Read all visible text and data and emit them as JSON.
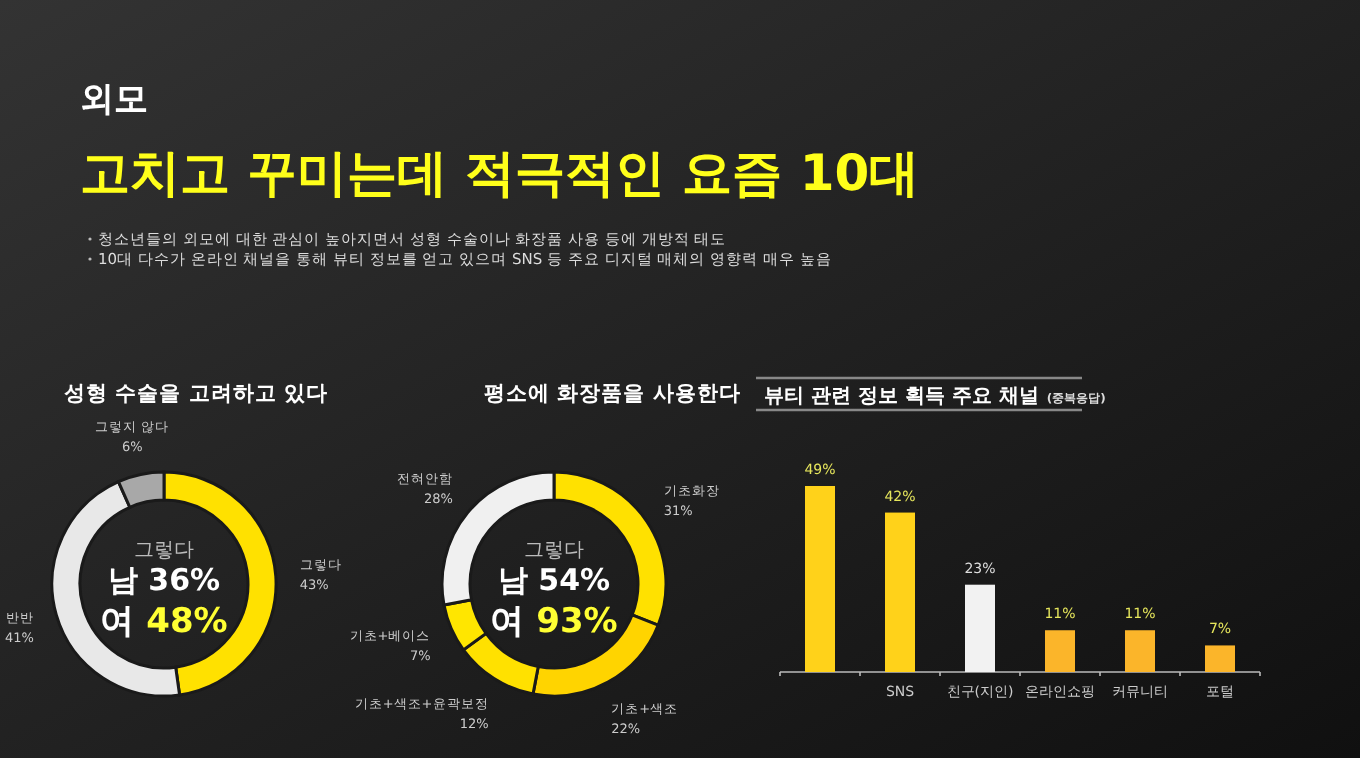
{
  "chart_data": [
    {
      "type": "other",
      "title": "외모",
      "subtitle": "고치고 꾸미는데 적극적인 요즘 10대",
      "annotations": [
        "청소년들의 외모에 대한 관심이 높아지면서 성형 수술이나 화장품 사용 등에 개방적 태도",
        "10대 다수가 온라인 채널을 통해 뷰티 정보를 얻고 있으며 SNS 등 주요 디지털 매체의 영향력 매우 높음"
      ]
    },
    {
      "type": "donut",
      "title": "성형 수술을 고려하고 있다",
      "categories": [
        "그렇다",
        "반반",
        "그렇지 않다"
      ],
      "values": [
        43,
        41,
        6
      ],
      "value_labels": [
        "43%",
        "41%",
        "6%"
      ],
      "colors": [
        "#ffe100",
        "#e8e8e8",
        "#a8a8a8"
      ],
      "annotations": [
        "그렇다",
        "남 36%",
        "여 48%"
      ]
    },
    {
      "type": "donut",
      "title": "평소에 화장품을 사용한다",
      "categories": [
        "기초화장",
        "기초+색조",
        "기초+색조+윤곽보정",
        "기초+베이스",
        "전혀안함"
      ],
      "values": [
        31,
        22,
        12,
        7,
        28
      ],
      "value_labels": [
        "31%",
        "22%",
        "12%",
        "7%",
        "28%"
      ],
      "colors": [
        "#ffe100",
        "#ffd400",
        "#ffe100",
        "#ffe600",
        "#f0f0f0"
      ],
      "annotations": [
        "그렇다",
        "남 54%",
        "여 93%"
      ]
    },
    {
      "type": "bar",
      "title": "뷰티 관련 정보 획득 주요 채널",
      "subtitle": "(중복응답)",
      "categories": [
        null,
        "SNS",
        "친구(지인)",
        "온라인쇼핑",
        "커뮤니티",
        "포털"
      ],
      "values": [
        49,
        42,
        23,
        11,
        11,
        7
      ],
      "value_labels": [
        "49%",
        "42%",
        "23%",
        "11%",
        "11%",
        "7%"
      ],
      "colors": [
        "#ffd21a",
        "#ffd21a",
        "#f2f2f2",
        "#fbb52a",
        "#fbb52a",
        "#fbb52a"
      ]
    }
  ]
}
